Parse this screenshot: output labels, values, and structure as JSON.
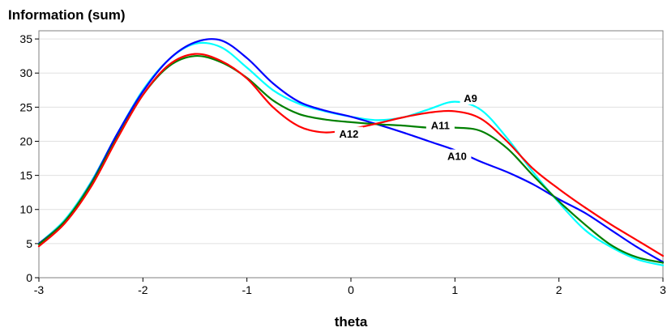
{
  "chart_data": {
    "type": "line",
    "ylabel": "Information (sum)",
    "xlabel": "theta",
    "xlim": [
      -3,
      3
    ],
    "ylim": [
      0,
      35
    ],
    "xticks": [
      -3,
      -2,
      -1,
      0,
      1,
      2,
      3
    ],
    "yticks": [
      0,
      5,
      10,
      15,
      20,
      25,
      30,
      35
    ],
    "grid": "horizontal",
    "x": [
      -3.0,
      -2.75,
      -2.5,
      -2.25,
      -2.0,
      -1.75,
      -1.5,
      -1.25,
      -1.0,
      -0.75,
      -0.5,
      -0.25,
      0.0,
      0.25,
      0.5,
      0.75,
      1.0,
      1.25,
      1.5,
      1.75,
      2.0,
      2.25,
      2.5,
      2.75,
      3.0
    ],
    "series": [
      {
        "name": "A9",
        "color": "#00ffff",
        "values": [
          5.0,
          8.5,
          14.0,
          21.0,
          27.5,
          32.0,
          34.3,
          33.8,
          30.8,
          27.5,
          25.5,
          24.4,
          23.6,
          23.1,
          23.5,
          24.7,
          25.8,
          24.6,
          20.5,
          15.5,
          11.0,
          7.0,
          4.5,
          2.7,
          1.8
        ]
      },
      {
        "name": "A10",
        "color": "#0000ff",
        "values": [
          5.0,
          8.3,
          13.8,
          21.0,
          27.3,
          32.0,
          34.5,
          34.8,
          32.2,
          28.5,
          25.8,
          24.5,
          23.6,
          22.5,
          21.3,
          20.0,
          18.7,
          17.0,
          15.5,
          13.7,
          11.5,
          9.5,
          7.0,
          4.5,
          2.3
        ]
      },
      {
        "name": "A11",
        "color": "#008000",
        "values": [
          4.9,
          8.3,
          13.7,
          20.5,
          26.8,
          31.0,
          32.5,
          31.6,
          29.3,
          26.0,
          24.0,
          23.2,
          22.8,
          22.5,
          22.3,
          22.0,
          22.0,
          21.5,
          19.0,
          15.0,
          11.2,
          7.8,
          4.8,
          3.0,
          2.2
        ]
      },
      {
        "name": "A12",
        "color": "#ff0000",
        "values": [
          4.6,
          8.0,
          13.3,
          20.3,
          26.8,
          31.2,
          32.8,
          31.8,
          29.2,
          25.0,
          22.2,
          21.3,
          21.8,
          22.6,
          23.5,
          24.2,
          24.4,
          23.3,
          20.0,
          16.0,
          13.0,
          10.3,
          7.8,
          5.5,
          3.2
        ]
      }
    ],
    "annotations": [
      {
        "text": "A9",
        "x": 1.15,
        "y": 26.0
      },
      {
        "text": "A12",
        "x": -0.02,
        "y": 20.8
      },
      {
        "text": "A11",
        "x": 0.86,
        "y": 22.0
      },
      {
        "text": "A10",
        "x": 1.02,
        "y": 17.5
      }
    ]
  }
}
